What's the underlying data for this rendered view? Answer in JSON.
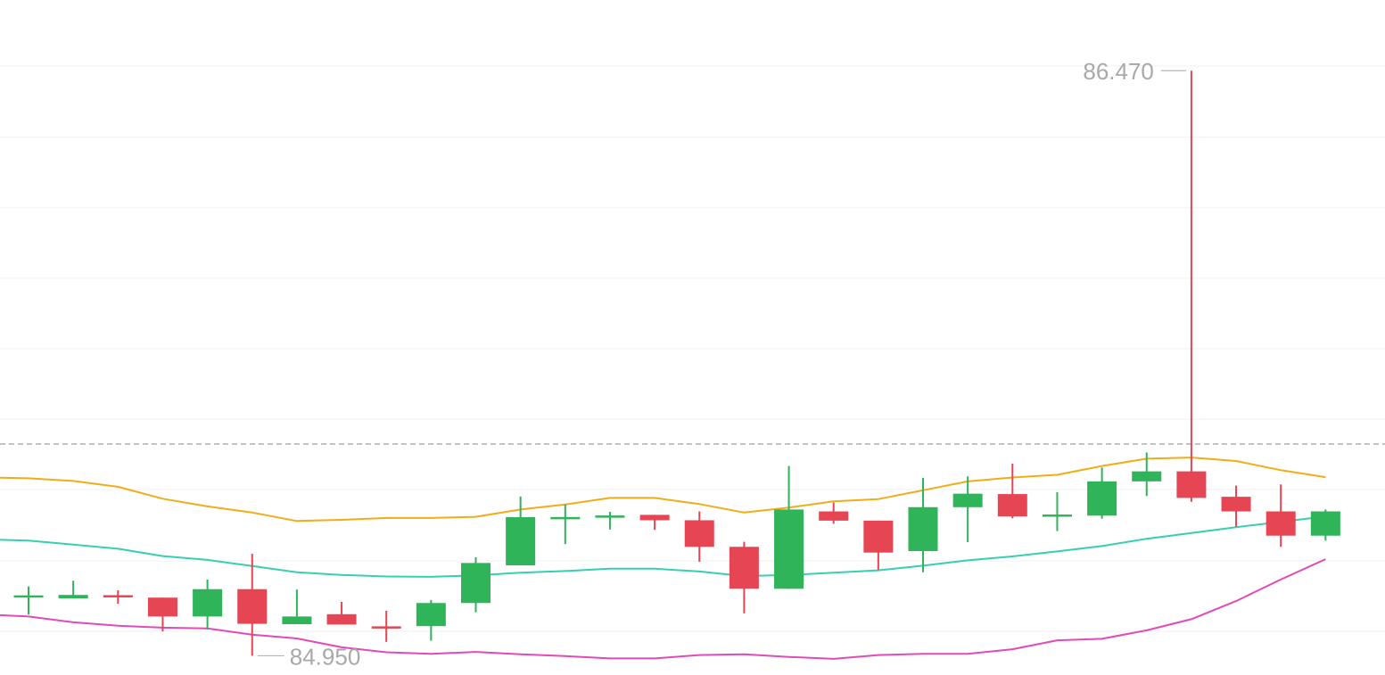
{
  "chart_data": {
    "type": "candlestick",
    "colors": {
      "up": "#2fb45a",
      "down": "#e64553",
      "band_upper": "#f0ad1a",
      "band_middle": "#36cfb0",
      "band_lower": "#e24ab9",
      "reference_line": "#a8a8a8",
      "grid": "#f0f0f0",
      "annotation_text": "#a9a9a9"
    },
    "grid": true,
    "y_range": [
      84.9,
      86.54
    ],
    "reference_value": 85.5,
    "annotations": {
      "high": {
        "value": 86.47,
        "label": "86.470",
        "index": 26
      },
      "low": {
        "value": 84.95,
        "label": "84.950",
        "index": 5
      }
    },
    "candles": [
      {
        "o": 85.104,
        "c": 85.104,
        "h": 85.13,
        "l": 85.057
      },
      {
        "o": 85.099,
        "c": 85.108,
        "h": 85.145,
        "l": 85.099
      },
      {
        "o": 85.106,
        "c": 85.103,
        "h": 85.12,
        "l": 85.085
      },
      {
        "o": 85.101,
        "c": 85.052,
        "h": 85.101,
        "l": 85.013
      },
      {
        "o": 85.052,
        "c": 85.123,
        "h": 85.148,
        "l": 85.018
      },
      {
        "o": 85.123,
        "c": 85.033,
        "h": 85.215,
        "l": 84.95
      },
      {
        "o": 85.032,
        "c": 85.052,
        "h": 85.122,
        "l": 85.033
      },
      {
        "o": 85.058,
        "c": 85.031,
        "h": 85.09,
        "l": 85.035
      },
      {
        "o": 85.025,
        "c": 85.022,
        "h": 85.067,
        "l": 84.986
      },
      {
        "o": 85.027,
        "c": 85.087,
        "h": 85.095,
        "l": 84.989
      },
      {
        "o": 85.087,
        "c": 85.191,
        "h": 85.206,
        "l": 85.063
      },
      {
        "o": 85.185,
        "c": 85.31,
        "h": 85.364,
        "l": 85.192
      },
      {
        "o": 85.305,
        "c": 85.31,
        "h": 85.343,
        "l": 85.24
      },
      {
        "o": 85.31,
        "c": 85.313,
        "h": 85.324,
        "l": 85.278
      },
      {
        "o": 85.316,
        "c": 85.302,
        "h": 85.316,
        "l": 85.277
      },
      {
        "o": 85.302,
        "c": 85.233,
        "h": 85.325,
        "l": 85.194
      },
      {
        "o": 85.233,
        "c": 85.124,
        "h": 85.246,
        "l": 85.06
      },
      {
        "o": 85.124,
        "c": 85.33,
        "h": 85.443,
        "l": 85.124
      },
      {
        "o": 85.325,
        "c": 85.301,
        "h": 85.348,
        "l": 85.293
      },
      {
        "o": 85.301,
        "c": 85.218,
        "h": 85.301,
        "l": 85.173
      },
      {
        "o": 85.222,
        "c": 85.336,
        "h": 85.412,
        "l": 85.167
      },
      {
        "o": 85.336,
        "c": 85.371,
        "h": 85.416,
        "l": 85.245
      },
      {
        "o": 85.37,
        "c": 85.312,
        "h": 85.449,
        "l": 85.307
      },
      {
        "o": 85.314,
        "c": 85.314,
        "h": 85.375,
        "l": 85.274
      },
      {
        "o": 85.314,
        "c": 85.403,
        "h": 85.439,
        "l": 85.306
      },
      {
        "o": 85.403,
        "c": 85.429,
        "h": 85.478,
        "l": 85.365
      },
      {
        "o": 85.429,
        "c": 85.36,
        "h": 86.47,
        "l": 85.35
      },
      {
        "o": 85.363,
        "c": 85.325,
        "h": 85.392,
        "l": 85.285
      },
      {
        "o": 85.325,
        "c": 85.262,
        "h": 85.395,
        "l": 85.233
      },
      {
        "o": 85.262,
        "c": 85.325,
        "h": 85.33,
        "l": 85.249
      }
    ],
    "band_upper": [
      85.411,
      85.404,
      85.389,
      85.358,
      85.338,
      85.322,
      85.3,
      85.303,
      85.308,
      85.308,
      85.311,
      85.33,
      85.343,
      85.36,
      85.36,
      85.344,
      85.322,
      85.335,
      85.351,
      85.357,
      85.38,
      85.403,
      85.413,
      85.42,
      85.443,
      85.462,
      85.465,
      85.456,
      85.432,
      85.414
    ],
    "band_middle": [
      85.249,
      85.239,
      85.228,
      85.209,
      85.199,
      85.183,
      85.167,
      85.16,
      85.156,
      85.155,
      85.159,
      85.166,
      85.17,
      85.176,
      85.176,
      85.169,
      85.157,
      85.16,
      85.166,
      85.172,
      85.184,
      85.198,
      85.208,
      85.221,
      85.235,
      85.254,
      85.269,
      85.284,
      85.298,
      85.312
    ],
    "band_lower": [
      85.052,
      85.037,
      85.028,
      85.023,
      85.021,
      85.005,
      84.995,
      84.972,
      84.959,
      84.955,
      84.96,
      84.954,
      84.949,
      84.943,
      84.943,
      84.952,
      84.954,
      84.947,
      84.942,
      84.952,
      84.955,
      84.955,
      84.967,
      84.99,
      84.994,
      85.016,
      85.045,
      85.092,
      85.148,
      85.201
    ]
  }
}
